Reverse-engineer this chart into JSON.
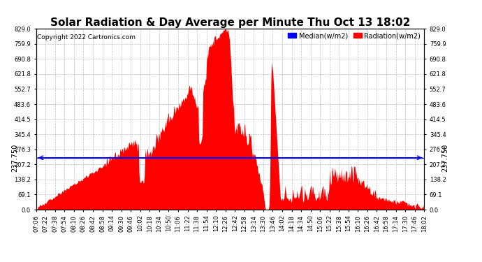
{
  "title": "Solar Radiation & Day Average per Minute Thu Oct 13 18:02",
  "copyright": "Copyright 2022 Cartronics.com",
  "legend_median": "Median(w/m2)",
  "legend_radiation": "Radiation(w/m2)",
  "median_value": 237.75,
  "y_ticks": [
    0.0,
    69.1,
    138.2,
    207.2,
    276.3,
    345.4,
    414.5,
    483.6,
    552.7,
    621.8,
    690.8,
    759.9,
    829.0
  ],
  "y_tick_labels": [
    "0.0",
    "69.1",
    "138.2",
    "207.2",
    "276.3",
    "345.4",
    "414.5",
    "483.6",
    "552.7",
    "621.8",
    "690.8",
    "759.9",
    "829.0"
  ],
  "ylim": [
    0,
    829.0
  ],
  "background_color": "#ffffff",
  "fill_color": "#ff0000",
  "line_color": "#0000ff",
  "grid_color": "#c0c0c0",
  "title_fontsize": 11,
  "copyright_fontsize": 6.5,
  "legend_fontsize": 7,
  "median_label_fontsize": 7,
  "tick_fontsize": 6,
  "x_tick_step_minutes": 16
}
